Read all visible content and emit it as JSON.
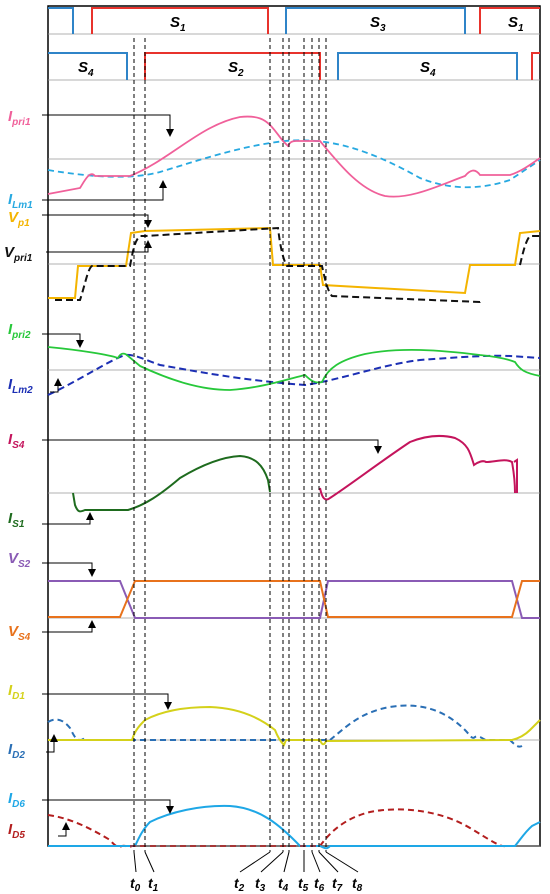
{
  "gate_labels": {
    "S1a": "S",
    "S1a_sub": "1",
    "S3": "S",
    "S3_sub": "3",
    "S1b": "S",
    "S1b_sub": "1",
    "S4a": "S",
    "S4a_sub": "4",
    "S2": "S",
    "S2_sub": "2",
    "S4b": "S",
    "S4b_sub": "4"
  },
  "signal_labels": {
    "Ipri1": {
      "main": "I",
      "sub": "pri1"
    },
    "ILm1": {
      "main": "I",
      "sub": "Lm1"
    },
    "Vp1": {
      "main": "V",
      "sub": "p1"
    },
    "Vpri1": {
      "main": "V",
      "sub": "pri1"
    },
    "Ipri2": {
      "main": "I",
      "sub": "pri2"
    },
    "ILm2": {
      "main": "I",
      "sub": "Lm2"
    },
    "IS4": {
      "main": "I",
      "sub": "S4"
    },
    "IS1": {
      "main": "I",
      "sub": "S1"
    },
    "VS2": {
      "main": "V",
      "sub": "S2"
    },
    "VS4": {
      "main": "V",
      "sub": "S4"
    },
    "ID1": {
      "main": "I",
      "sub": "D1"
    },
    "ID2": {
      "main": "I",
      "sub": "D2"
    },
    "ID6": {
      "main": "I",
      "sub": "D6"
    },
    "ID5": {
      "main": "I",
      "sub": "D5"
    }
  },
  "time_labels": [
    {
      "main": "t",
      "sub": "0"
    },
    {
      "main": "t",
      "sub": "1"
    },
    {
      "main": "t",
      "sub": "2"
    },
    {
      "main": "t",
      "sub": "3"
    },
    {
      "main": "t",
      "sub": "4"
    },
    {
      "main": "t",
      "sub": "5"
    },
    {
      "main": "t",
      "sub": "6"
    },
    {
      "main": "t",
      "sub": "7"
    },
    {
      "main": "t",
      "sub": "8"
    }
  ],
  "colors": {
    "S1": "#e8332c",
    "S3": "#2f84c8",
    "S2": "#e8332c",
    "S4": "#2f84c8",
    "Ipri1": "#f0609a",
    "ILm1": "#27a9e1",
    "Vp1": "#f4b400",
    "Vpri1": "#111111",
    "Ipri2": "#27c83a",
    "ILm2": "#1c2fb4",
    "IS4": "#c4145c",
    "IS1": "#1e6b1e",
    "VS2": "#8a5bb5",
    "VS4": "#e8721c",
    "ID1": "#d4d11a",
    "ID2": "#2a6fb5",
    "ID6": "#1ea7e6",
    "ID5": "#b31e1e",
    "axis": "#999999",
    "frame": "#000000"
  }
}
